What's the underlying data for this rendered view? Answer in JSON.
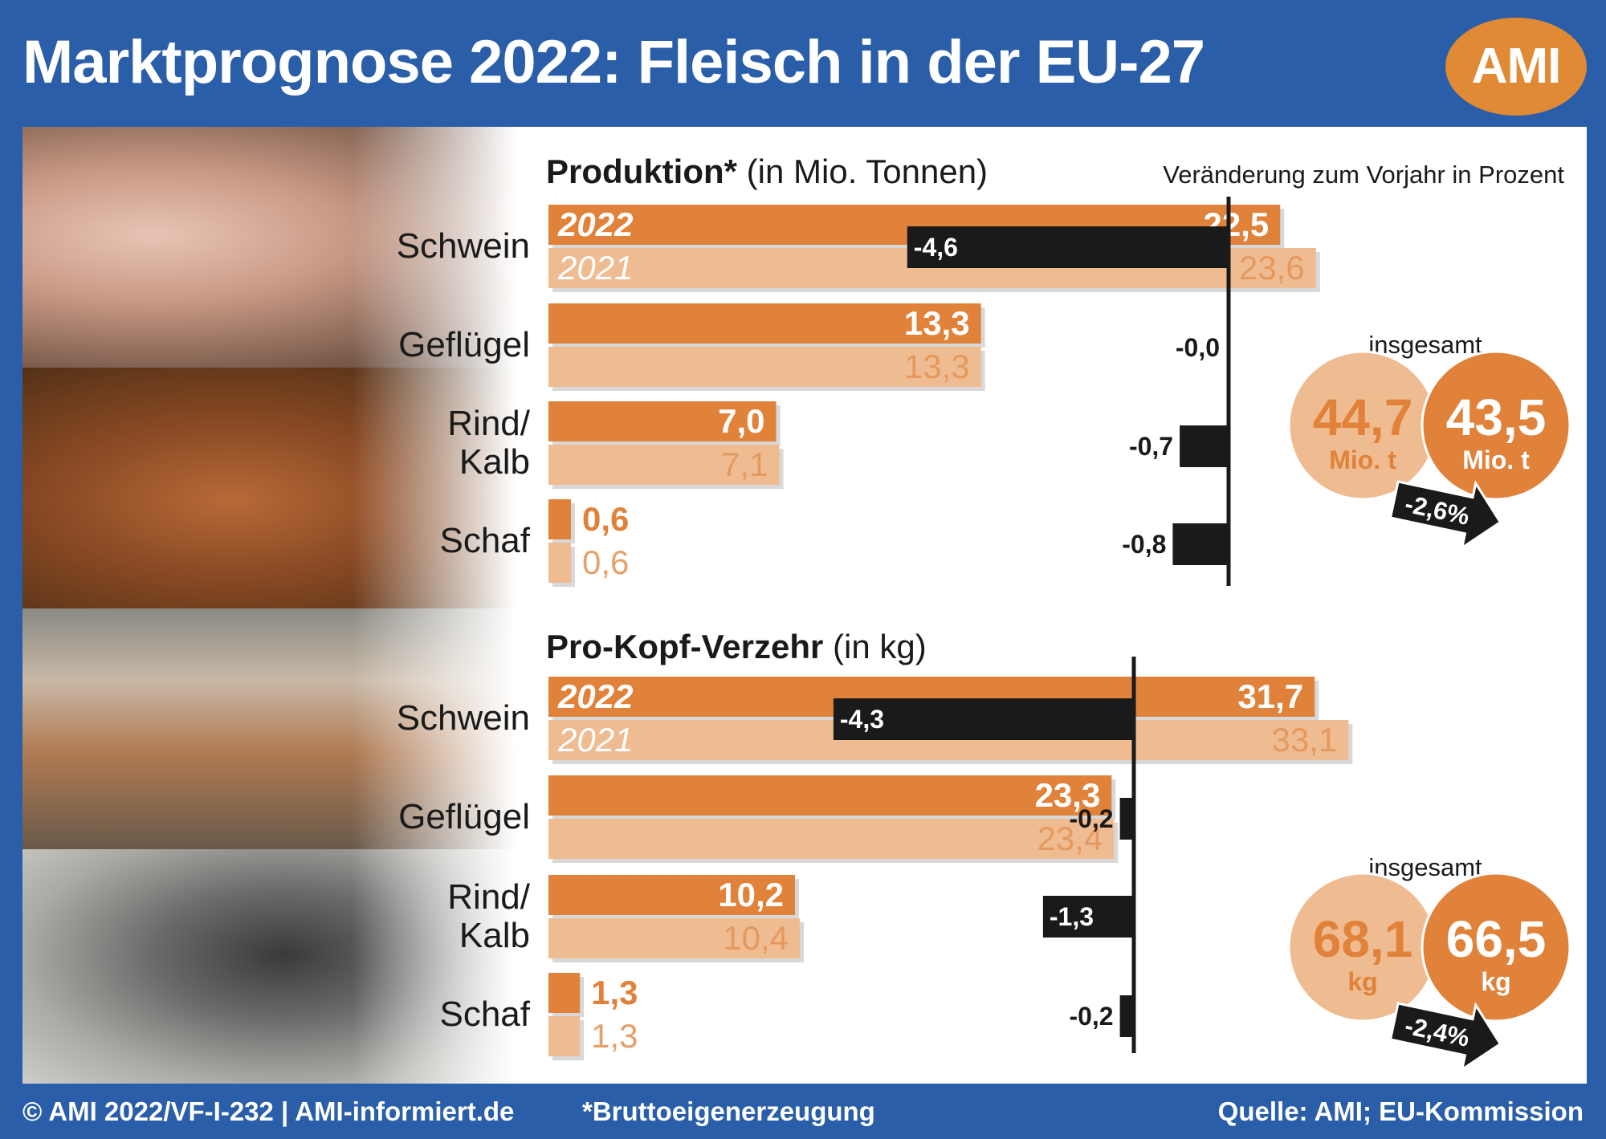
{
  "header": {
    "title": "Marktprognose 2022: Fleisch in der EU-27",
    "logo_text": "AMI"
  },
  "footer": {
    "copyright": "© AMI 2022/VF-I-232 | AMI-informiert.de",
    "footnote": "*Bruttoeigenerzeugung",
    "source": "Quelle: AMI; EU-Kommission"
  },
  "photos": [
    "pigs-photo",
    "hens-photo",
    "cows-photo",
    "goat-sheep-photo"
  ],
  "colors": {
    "bar_2022": "#e0823a",
    "bar_2021": "#efbc92",
    "change": "#1a1a1a",
    "blue": "#2a5ea8"
  },
  "chart_data": [
    {
      "type": "bar",
      "title": "Produktion*",
      "unit_label": "(in Mio. Tonnen)",
      "change_title": "Veränderung zum Vorjahr in Prozent",
      "categories": [
        "Schwein",
        "Geflügel",
        "Rind/\nKalb",
        "Schaf"
      ],
      "series": [
        {
          "name": "2022",
          "values": [
            22.5,
            13.3,
            7.0,
            0.6
          ],
          "labels": [
            "22,5",
            "13,3",
            "7,0",
            "0,6"
          ]
        },
        {
          "name": "2021",
          "values": [
            23.6,
            13.3,
            7.1,
            0.6
          ],
          "labels": [
            "23,6",
            "13,3",
            "7,1",
            "0,6"
          ]
        }
      ],
      "change": {
        "values": [
          -4.6,
          -0.0,
          -0.7,
          -0.8
        ],
        "labels": [
          "-4,6",
          "-0,0",
          "-0,7",
          "-0,8"
        ]
      },
      "total": {
        "label": "insgesamt",
        "value_2021": "44,7",
        "value_2022": "43,5",
        "unit": "Mio. t",
        "change": "-2,6%"
      }
    },
    {
      "type": "bar",
      "title": "Pro-Kopf-Verzehr",
      "unit_label": "(in kg)",
      "categories": [
        "Schwein",
        "Geflügel",
        "Rind/\nKalb",
        "Schaf"
      ],
      "series": [
        {
          "name": "2022",
          "values": [
            31.7,
            23.3,
            10.2,
            1.3
          ],
          "labels": [
            "31,7",
            "23,3",
            "10,2",
            "1,3"
          ]
        },
        {
          "name": "2021",
          "values": [
            33.1,
            23.4,
            10.4,
            1.3
          ],
          "labels": [
            "33,1",
            "23,4",
            "10,4",
            "1,3"
          ]
        }
      ],
      "change": {
        "values": [
          -4.3,
          -0.2,
          -1.3,
          -0.2
        ],
        "labels": [
          "-4,3",
          "-0,2",
          "-1,3",
          "-0,2"
        ]
      },
      "total": {
        "label": "insgesamt",
        "value_2021": "68,1",
        "value_2022": "66,5",
        "unit": "kg",
        "change": "-2,4%"
      }
    }
  ]
}
